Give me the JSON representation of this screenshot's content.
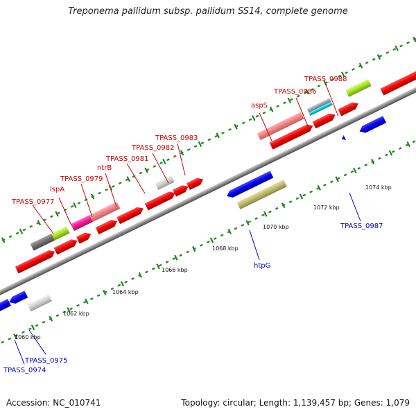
{
  "title": "Treponema pallidum subsp. pallidum SS14, complete genome",
  "footer": {
    "accession": "Accession: NC_010741",
    "stats": "Topology: circular; Length: 1,139,457 bp; Genes: 1,079"
  },
  "colors": {
    "forward_label": "#cc0000",
    "reverse_label": "#0000cc",
    "backbone": "#8a8a8a",
    "tick_green": "#1a8a1a",
    "dot_green": "#2e8b2e"
  },
  "scale_ticks": [
    "1060 kbp",
    "1062 kbp",
    "1064 kbp",
    "1066 kbp",
    "1068 kbp",
    "1070 kbp",
    "1072 kbp",
    "1074 kbp"
  ],
  "labels": [
    {
      "text": "TPASS_0977",
      "strand": "forward"
    },
    {
      "text": "lspA",
      "strand": "forward"
    },
    {
      "text": "TPASS_0979",
      "strand": "forward"
    },
    {
      "text": "ntrB",
      "strand": "forward"
    },
    {
      "text": "TPASS_0981",
      "strand": "forward"
    },
    {
      "text": "TPASS_0982",
      "strand": "forward"
    },
    {
      "text": "TPASS_0983",
      "strand": "forward"
    },
    {
      "text": "aspS",
      "strand": "forward"
    },
    {
      "text": "TPASS_0986",
      "strand": "forward"
    },
    {
      "text": "TPASS_0988",
      "strand": "forward"
    },
    {
      "text": "htpG",
      "strand": "reverse"
    },
    {
      "text": "TPASS_0987",
      "strand": "reverse"
    },
    {
      "text": "TPASS_0975",
      "strand": "reverse"
    },
    {
      "text": "TPASS_0974",
      "strand": "reverse"
    }
  ]
}
